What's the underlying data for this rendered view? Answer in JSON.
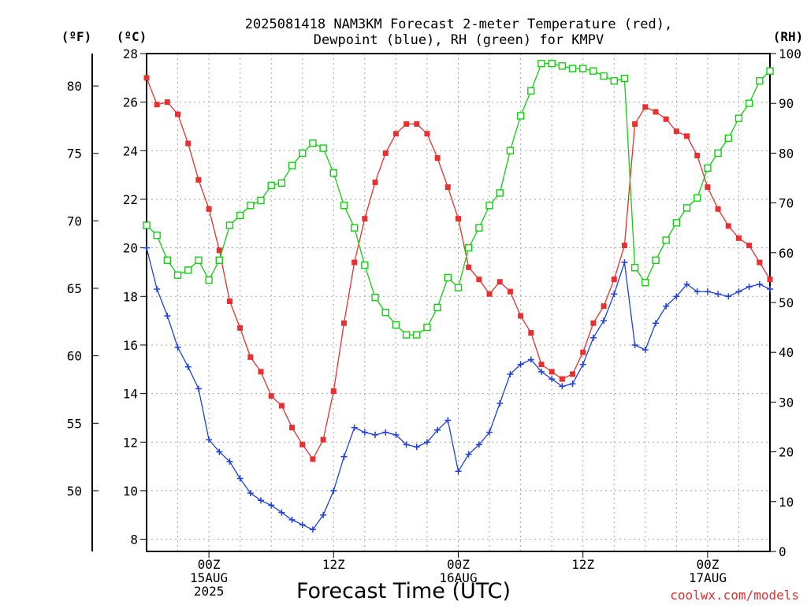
{
  "chart_data": {
    "type": "line",
    "title_lines": [
      "2025081418 NAM3KM Forecast 2-meter Temperature (red),",
      "Dewpoint (blue), RH (green) for KMPV"
    ],
    "xlabel": "Forecast Time (UTC)",
    "credit": "coolwx.com/models",
    "units": {
      "f": "(ºF)",
      "c": "(ºC)",
      "rh": "(RH)"
    },
    "x_ticks": [
      {
        "h": 6,
        "lines": [
          "00Z",
          "15AUG",
          "2025"
        ]
      },
      {
        "h": 18,
        "lines": [
          "12Z"
        ]
      },
      {
        "h": 30,
        "lines": [
          "00Z",
          "16AUG"
        ]
      },
      {
        "h": 42,
        "lines": [
          "12Z"
        ]
      },
      {
        "h": 54,
        "lines": [
          "00Z",
          "17AUG"
        ]
      }
    ],
    "xlim": [
      0,
      60
    ],
    "ylim_c": [
      7.5,
      28
    ],
    "ylim_rh": [
      0,
      100
    ],
    "y_ticks_c": [
      8,
      10,
      12,
      14,
      16,
      18,
      20,
      22,
      24,
      26,
      28
    ],
    "y_ticks_f": [
      50,
      55,
      60,
      65,
      70,
      75,
      80
    ],
    "y_ticks_rh": [
      0,
      10,
      20,
      30,
      40,
      50,
      60,
      70,
      80,
      90,
      100
    ],
    "colors": {
      "temperature": "#e83030",
      "dewpoint": "#2040e0",
      "rh": "#10d010"
    },
    "x_hours": [
      0,
      1,
      2,
      3,
      4,
      5,
      6,
      7,
      8,
      9,
      10,
      11,
      12,
      13,
      14,
      15,
      16,
      17,
      18,
      19,
      20,
      21,
      22,
      23,
      24,
      25,
      26,
      27,
      28,
      29,
      30,
      31,
      32,
      33,
      34,
      35,
      36,
      37,
      38,
      39,
      40,
      41,
      42,
      43,
      44,
      45,
      46,
      47,
      48,
      49,
      50,
      51,
      52,
      53,
      54,
      55,
      56,
      57,
      58,
      59,
      60
    ],
    "series": [
      {
        "key": "temperature",
        "values": [
          27.0,
          25.9,
          26.0,
          25.5,
          24.3,
          22.8,
          21.6,
          19.9,
          17.8,
          16.7,
          15.5,
          14.9,
          13.9,
          13.5,
          12.6,
          11.9,
          11.3,
          12.1,
          14.1,
          16.9,
          19.4,
          21.2,
          22.7,
          23.9,
          24.7,
          25.1,
          25.1,
          24.7,
          23.7,
          22.5,
          21.2,
          19.2,
          18.7,
          18.1,
          18.6,
          18.2,
          17.2,
          16.5,
          15.2,
          14.9,
          14.6,
          14.8,
          15.7,
          16.9,
          17.6,
          18.7,
          20.1,
          25.1,
          25.8,
          25.6,
          25.3,
          24.8,
          24.6,
          23.8,
          22.5,
          21.6,
          20.9,
          20.4,
          20.1,
          19.4,
          18.7
        ]
      },
      {
        "key": "dewpoint",
        "values": [
          20.0,
          18.3,
          17.2,
          15.9,
          15.1,
          14.2,
          12.1,
          11.6,
          11.2,
          10.5,
          9.9,
          9.6,
          9.4,
          9.1,
          8.8,
          8.6,
          8.4,
          9.0,
          10.0,
          11.4,
          12.6,
          12.4,
          12.3,
          12.4,
          12.3,
          11.9,
          11.8,
          12.0,
          12.5,
          12.9,
          10.8,
          11.5,
          11.9,
          12.4,
          13.6,
          14.8,
          15.2,
          15.4,
          14.9,
          14.6,
          14.3,
          14.4,
          15.2,
          16.3,
          17.0,
          18.1,
          19.4,
          16.0,
          15.8,
          16.9,
          17.6,
          18.0,
          18.5,
          18.2,
          18.2,
          18.1,
          18.0,
          18.2,
          18.4,
          18.5,
          18.3
        ]
      },
      {
        "key": "rh",
        "values": [
          65.5,
          63.5,
          58.5,
          55.5,
          56.5,
          58.5,
          54.5,
          58.5,
          65.5,
          67.5,
          69.5,
          70.5,
          73.5,
          74.0,
          77.5,
          80.0,
          82.0,
          81.0,
          76.0,
          69.5,
          65.0,
          57.5,
          51.0,
          48.0,
          45.5,
          43.5,
          43.5,
          45.0,
          49.0,
          55.0,
          53.0,
          61.0,
          65.0,
          69.5,
          72.0,
          80.5,
          87.5,
          92.5,
          98.0,
          98.0,
          97.5,
          97.0,
          97.0,
          96.5,
          95.5,
          94.5,
          95.0,
          57.0,
          54.0,
          58.5,
          62.5,
          66.0,
          69.0,
          71.0,
          77.0,
          80.0,
          83.0,
          87.0,
          90.0,
          94.5,
          96.5
        ]
      }
    ]
  }
}
